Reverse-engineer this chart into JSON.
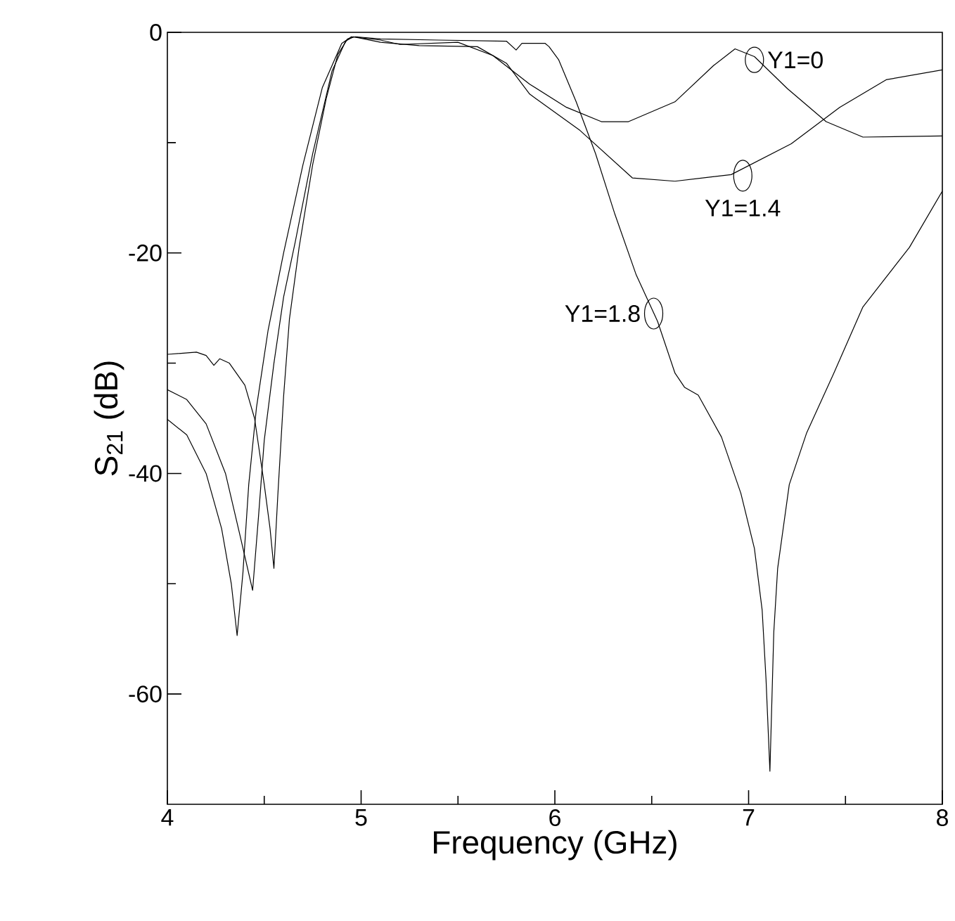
{
  "chart_data": {
    "type": "line",
    "xlabel": "Frequency (GHz)",
    "ylabel": "S$_{21}$ (dB)",
    "xlim": [
      4,
      8
    ],
    "ylim": [
      -70,
      0
    ],
    "xticks": [
      4,
      5,
      6,
      7,
      8
    ],
    "yticks": [
      -60,
      -40,
      -20,
      0
    ],
    "grid": false,
    "legend": false,
    "marker": "none",
    "line_style": "solid",
    "series": [
      {
        "color": "#000000",
        "x": [
          4,
          4.1,
          4.2,
          4.28,
          4.33,
          4.36,
          4.39,
          4.42,
          4.46,
          4.52,
          4.6,
          4.7,
          4.8,
          4.9,
          4.95,
          5.1,
          5.2,
          5.5,
          5.68,
          5.87,
          6.06,
          6.24,
          6.38,
          6.62,
          6.82,
          6.93,
          7.03,
          7.2,
          7.4,
          7.59,
          8.0
        ],
        "values": [
          -35.1,
          -36.5,
          -40,
          -45,
          -50,
          -54.7,
          -49,
          -41,
          -34,
          -27,
          -20,
          -12,
          -5,
          -1,
          -0.4,
          -0.7,
          -1.1,
          -0.9,
          -2.1,
          -4.7,
          -6.8,
          -8.1,
          -8.1,
          -6.3,
          -3,
          -1.5,
          -2.2,
          -5.1,
          -8.1,
          -9.5,
          -9.4
        ]
      },
      {
        "color": "#000000",
        "x": [
          4,
          4.1,
          4.2,
          4.3,
          4.38,
          4.44,
          4.47,
          4.5,
          4.55,
          4.6,
          4.66,
          4.75,
          4.85,
          4.92,
          4.96,
          5.1,
          5.3,
          5.6,
          5.75,
          5.87,
          6.13,
          6.4,
          6.62,
          6.91,
          7.22,
          7.47,
          7.71,
          8.0
        ],
        "values": [
          -32.4,
          -33.3,
          -35.5,
          -40,
          -46,
          -50.6,
          -44,
          -37,
          -30,
          -24,
          -19,
          -11,
          -3.5,
          -0.8,
          -0.4,
          -0.9,
          -1.2,
          -1.3,
          -2.8,
          -5.6,
          -8.9,
          -13.2,
          -13.5,
          -12.9,
          -10.1,
          -6.8,
          -4.3,
          -3.4
        ]
      },
      {
        "color": "#000000",
        "x": [
          4,
          4.15,
          4.2,
          4.24,
          4.27,
          4.32,
          4.4,
          4.45,
          4.5,
          4.53,
          4.55,
          4.57,
          4.6,
          4.63,
          4.68,
          4.75,
          4.82,
          4.88,
          4.93,
          4.97,
          5.1,
          5.4,
          5.75,
          5.8,
          5.83,
          5.95,
          5.97,
          6.02,
          6.11,
          6.21,
          6.31,
          6.42,
          6.53,
          6.62,
          6.67,
          6.74,
          6.86,
          6.96,
          7.03,
          7.07,
          7.09,
          7.11,
          7.13,
          7.15,
          7.21,
          7.3,
          7.44,
          7.59,
          7.83,
          8.0
        ],
        "values": [
          -29.2,
          -29,
          -29.3,
          -30.2,
          -29.6,
          -30,
          -32,
          -35,
          -41,
          -45,
          -48.6,
          -42,
          -33,
          -26,
          -19.5,
          -12,
          -6,
          -2,
          -0.6,
          -0.4,
          -0.6,
          -0.7,
          -0.8,
          -1.6,
          -1,
          -1,
          -1.3,
          -2.5,
          -6.3,
          -11,
          -16.5,
          -22,
          -26.2,
          -30.9,
          -32.2,
          -32.9,
          -36.7,
          -41.8,
          -46.8,
          -52.4,
          -58.7,
          -67,
          -54.4,
          -48.6,
          -41,
          -36.3,
          -30.9,
          -24.9,
          -19.5,
          -14.4
        ]
      }
    ],
    "annotations": [
      {
        "text": "Y1=0",
        "x": 7.03,
        "y": -2.5
      },
      {
        "text": "Y1=1.4",
        "x": 6.97,
        "y": -13
      },
      {
        "text": "Y1=1.8",
        "x": 6.51,
        "y": -25.5
      }
    ]
  }
}
